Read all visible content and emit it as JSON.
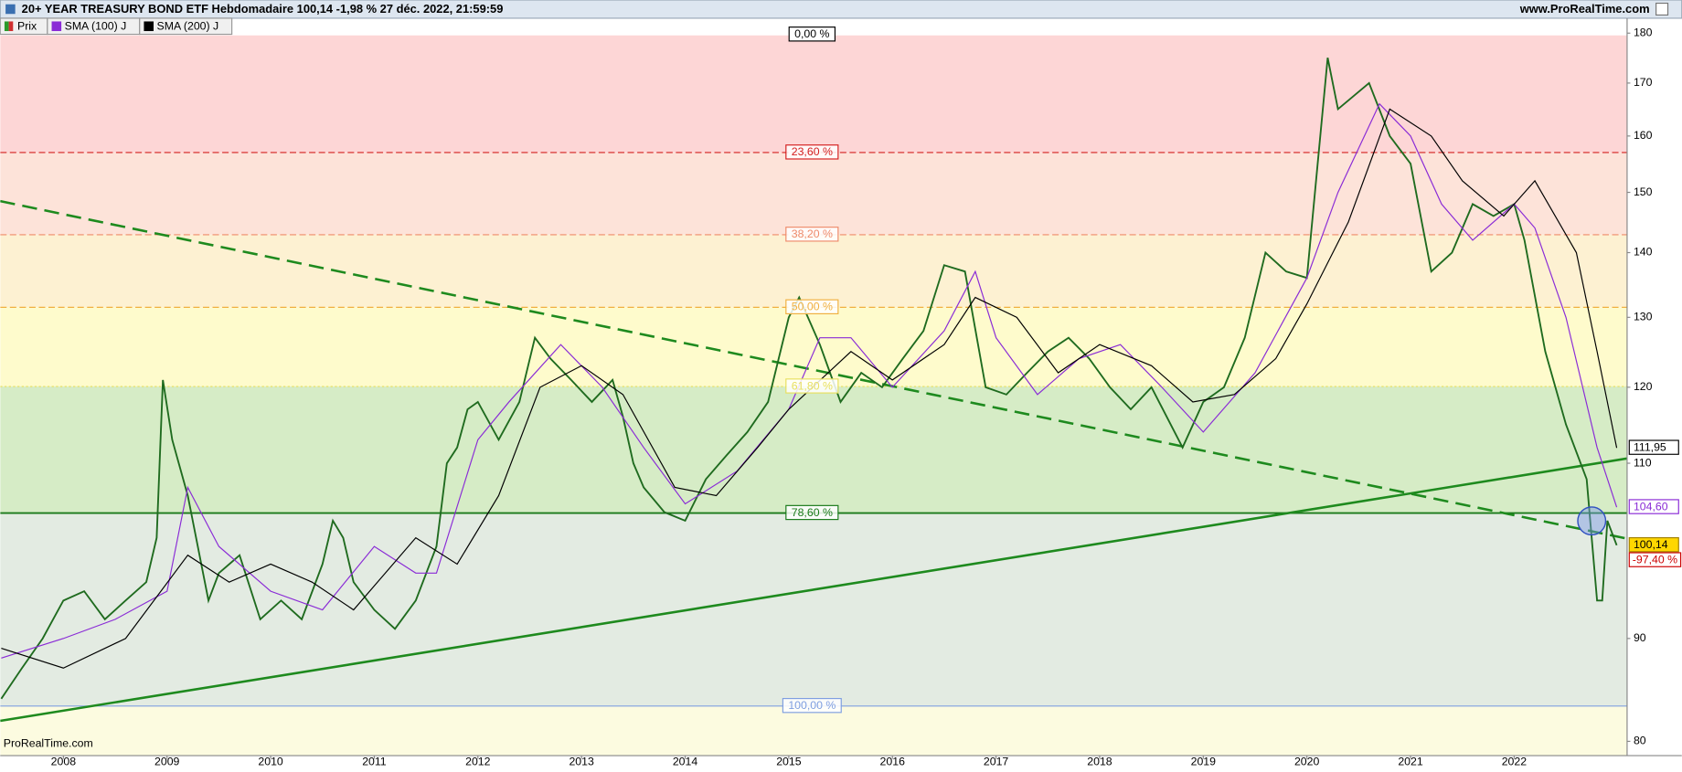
{
  "header": {
    "title": "20+ YEAR TREASURY BOND ETF Hebdomadaire 100,14 -1,98 % 27 déc. 2022, 21:59:59",
    "site": "www.ProRealTime.com"
  },
  "chart_data": {
    "type": "line",
    "log_scale": true,
    "xlim": [
      2007.39,
      2023.09
    ],
    "xticks": [
      2008,
      2009,
      2010,
      2011,
      2012,
      2013,
      2014,
      2015,
      2016,
      2017,
      2018,
      2019,
      2020,
      2021,
      2022
    ],
    "ylim": [
      78.7,
      183.1
    ],
    "yticks": [
      80,
      90,
      110,
      120,
      130,
      140,
      150,
      160,
      170,
      180
    ],
    "watermark": "ProRealTime.com",
    "series": [
      {
        "name": "Prix",
        "color": "#1f6b1f",
        "last_label": "100,14",
        "x": [
          2007.4,
          2007.6,
          2007.8,
          2008.0,
          2008.2,
          2008.4,
          2008.6,
          2008.8,
          2008.9,
          2008.96,
          2009.05,
          2009.2,
          2009.4,
          2009.5,
          2009.7,
          2009.9,
          2010.1,
          2010.3,
          2010.5,
          2010.6,
          2010.7,
          2010.8,
          2011.0,
          2011.2,
          2011.4,
          2011.6,
          2011.7,
          2011.8,
          2011.9,
          2012.0,
          2012.2,
          2012.4,
          2012.55,
          2012.7,
          2012.9,
          2013.1,
          2013.3,
          2013.4,
          2013.5,
          2013.6,
          2013.8,
          2014.0,
          2014.2,
          2014.4,
          2014.6,
          2014.8,
          2015.0,
          2015.1,
          2015.3,
          2015.5,
          2015.7,
          2015.9,
          2016.1,
          2016.3,
          2016.5,
          2016.7,
          2016.9,
          2017.1,
          2017.3,
          2017.5,
          2017.7,
          2017.9,
          2018.1,
          2018.3,
          2018.5,
          2018.8,
          2019.0,
          2019.2,
          2019.4,
          2019.6,
          2019.8,
          2020.0,
          2020.2,
          2020.3,
          2020.6,
          2020.8,
          2021.0,
          2021.2,
          2021.4,
          2021.6,
          2021.8,
          2022.0,
          2022.1,
          2022.3,
          2022.5,
          2022.7,
          2022.8,
          2022.85,
          2022.9,
          2022.99
        ],
        "values": [
          84,
          87,
          90,
          94,
          95,
          92,
          94,
          96,
          101,
          121,
          113,
          106,
          94,
          97,
          99,
          92,
          94,
          92,
          98,
          103,
          101,
          96,
          93,
          91,
          94,
          100,
          110,
          112,
          117,
          118,
          113,
          118,
          127,
          124,
          121,
          118,
          121,
          116,
          110,
          107,
          104,
          103,
          108,
          111,
          114,
          118,
          130,
          133,
          126,
          118,
          122,
          120,
          124,
          128,
          138,
          137,
          120,
          119,
          122,
          125,
          127,
          124,
          120,
          117,
          120,
          112,
          118,
          120,
          127,
          140,
          137,
          136,
          175,
          165,
          170,
          160,
          155,
          137,
          140,
          148,
          146,
          148,
          142,
          125,
          115,
          108,
          94,
          94,
          103,
          100.14
        ]
      },
      {
        "name": "SMA (100) J",
        "color": "#8a2bd6",
        "last_label": "104,60",
        "x": [
          2007.4,
          2008.0,
          2008.5,
          2009.0,
          2009.2,
          2009.5,
          2010.0,
          2010.5,
          2011.0,
          2011.4,
          2011.6,
          2012.0,
          2012.3,
          2012.8,
          2013.2,
          2013.6,
          2014.0,
          2014.5,
          2015.0,
          2015.3,
          2015.6,
          2016.0,
          2016.5,
          2016.8,
          2017.0,
          2017.4,
          2017.8,
          2018.2,
          2018.6,
          2019.0,
          2019.5,
          2020.0,
          2020.3,
          2020.7,
          2021.0,
          2021.3,
          2021.6,
          2022.0,
          2022.2,
          2022.5,
          2022.8,
          2022.99
        ],
        "values": [
          88,
          90,
          92,
          95,
          107,
          100,
          95,
          93,
          100,
          97,
          97,
          113,
          118,
          126,
          120,
          112,
          105,
          109,
          117,
          127,
          127,
          120,
          128,
          137,
          127,
          119,
          124,
          126,
          120,
          114,
          122,
          136,
          150,
          166,
          160,
          148,
          142,
          148,
          144,
          130,
          112,
          104.6
        ]
      },
      {
        "name": "SMA (200) J",
        "color": "#000000",
        "last_label": "111,95",
        "x": [
          2007.4,
          2008.0,
          2008.6,
          2009.2,
          2009.6,
          2010.0,
          2010.4,
          2010.8,
          2011.4,
          2011.8,
          2012.2,
          2012.6,
          2013.0,
          2013.4,
          2013.9,
          2014.3,
          2014.7,
          2015.0,
          2015.6,
          2016.0,
          2016.5,
          2016.8,
          2017.2,
          2017.6,
          2018.0,
          2018.5,
          2018.9,
          2019.3,
          2019.7,
          2020.0,
          2020.4,
          2020.8,
          2021.2,
          2021.5,
          2021.9,
          2022.2,
          2022.6,
          2022.8,
          2022.99
        ],
        "values": [
          89,
          87,
          90,
          99,
          96,
          98,
          96,
          93,
          101,
          98,
          106,
          120,
          123,
          119,
          107,
          106,
          112,
          117,
          125,
          121,
          126,
          133,
          130,
          122,
          126,
          123,
          118,
          119,
          124,
          132,
          145,
          165,
          160,
          152,
          146,
          152,
          140,
          125,
          111.95
        ]
      }
    ],
    "position_label": "-97,40 %",
    "fibonacci": [
      {
        "label": "0,00 %",
        "value": 179.7,
        "color": "#000000",
        "style": "solid",
        "fill": "#fdd6d6"
      },
      {
        "label": "23,60 %",
        "value": 157.0,
        "color": "#d42020",
        "style": "dashed",
        "fill": "#fde3d9"
      },
      {
        "label": "38,20 %",
        "value": 142.9,
        "color": "#ee8a6a",
        "style": "dashed",
        "fill": "#fdf1d2"
      },
      {
        "label": "50,00 %",
        "value": 131.5,
        "color": "#f0b040",
        "style": "dashed",
        "fill": "#fefbcc"
      },
      {
        "label": "61,80 %",
        "value": 120.1,
        "color": "#e8e060",
        "style": "dotted",
        "fill": "#d6ecc6"
      },
      {
        "label": "78,60 %",
        "value": 103.9,
        "color": "#1a7a1a",
        "style": "solid",
        "fill": "#e3ebe2"
      },
      {
        "label": "100,00 %",
        "value": 83.3,
        "color": "#7f9fe0",
        "style": "solid",
        "fill": "#fcfbe0"
      }
    ],
    "trendlines": [
      {
        "x": [
          2007.39,
          2023.09
        ],
        "y": [
          148.5,
          100.9
        ],
        "color": "#1e8a1e",
        "dashed": true
      },
      {
        "x": [
          2007.39,
          2023.09
        ],
        "y": [
          81.9,
          110.6
        ],
        "color": "#1e8a1e",
        "dashed": false
      }
    ]
  }
}
